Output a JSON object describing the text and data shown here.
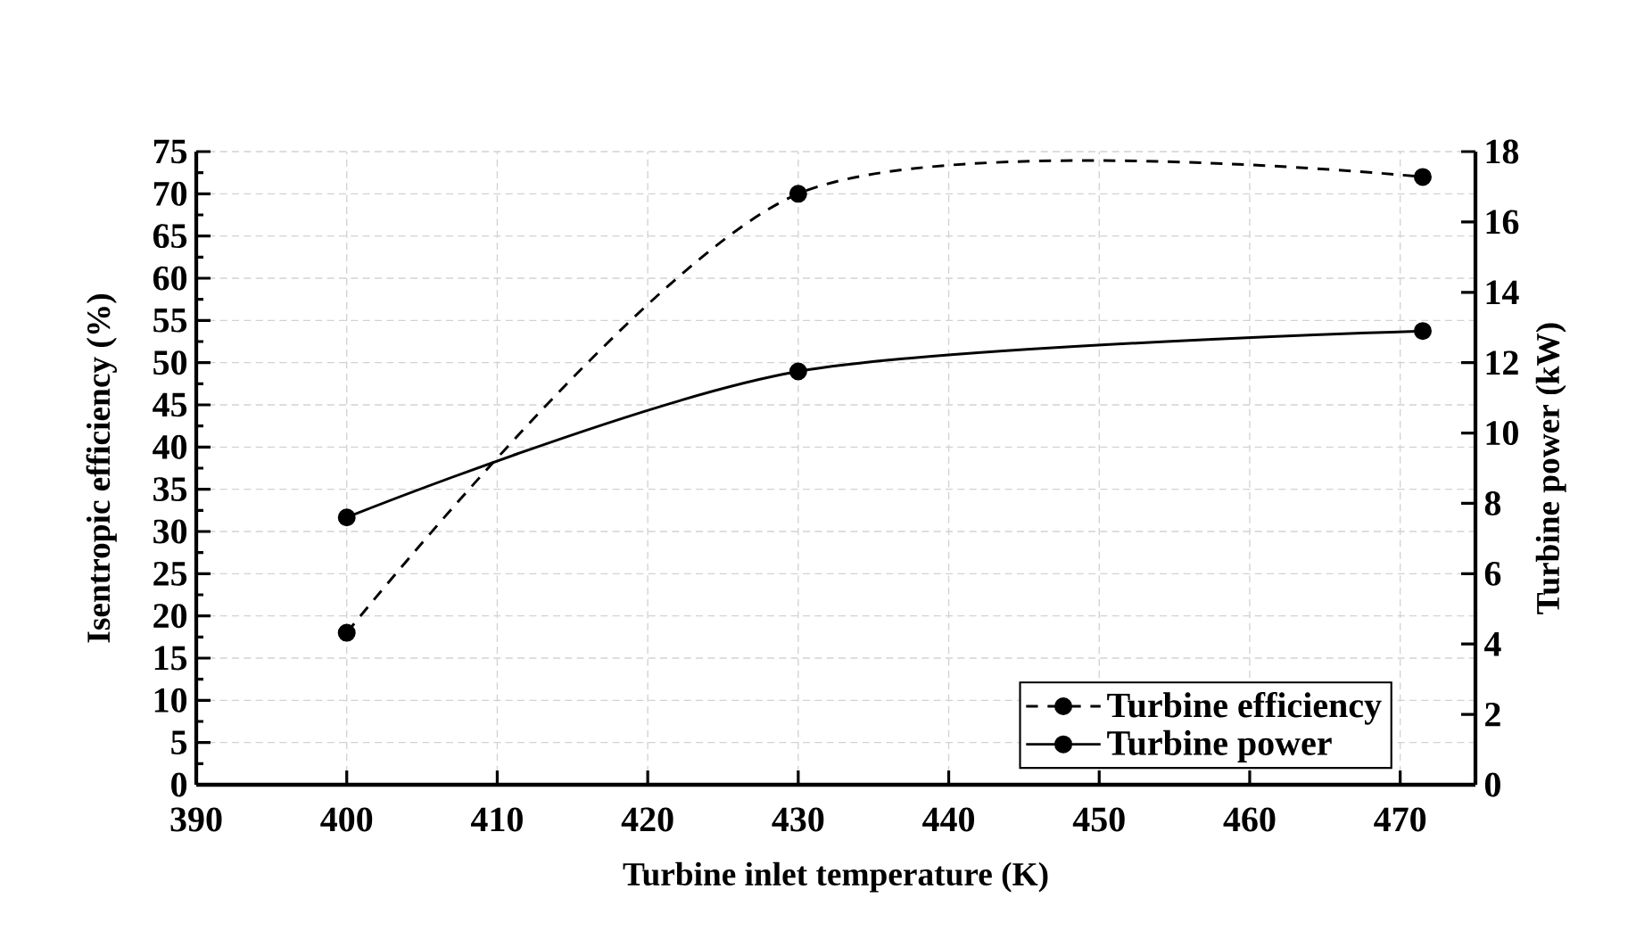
{
  "chart_data": {
    "type": "line",
    "xlabel": "Turbine inlet temperature (K)",
    "ylabel": "Isentropic efficiency (%)",
    "y2label": "Turbine power (kW)",
    "x": [
      400,
      430,
      471.5
    ],
    "series": [
      {
        "name": "Turbine efficiency",
        "color": "#000000",
        "line_style": "dashed",
        "values": [
          18,
          70,
          72
        ]
      },
      {
        "name": "Turbine power",
        "color": "#000000",
        "line_style": "solid",
        "axis": "y2",
        "values": [
          7.6,
          11.75,
          12.9
        ]
      }
    ],
    "xlim": [
      390,
      475
    ],
    "xticks": [
      390,
      400,
      410,
      420,
      430,
      440,
      450,
      460,
      470
    ],
    "ylim": [
      0,
      75
    ],
    "yticks": [
      0,
      5,
      10,
      15,
      20,
      25,
      30,
      35,
      40,
      45,
      50,
      55,
      60,
      65,
      70,
      75
    ],
    "y2lim": [
      0,
      18
    ],
    "y2ticks": [
      0,
      2,
      4,
      6,
      8,
      10,
      12,
      14,
      16,
      18
    ],
    "grid": true,
    "legend": "bottom right",
    "marker": "circle"
  }
}
